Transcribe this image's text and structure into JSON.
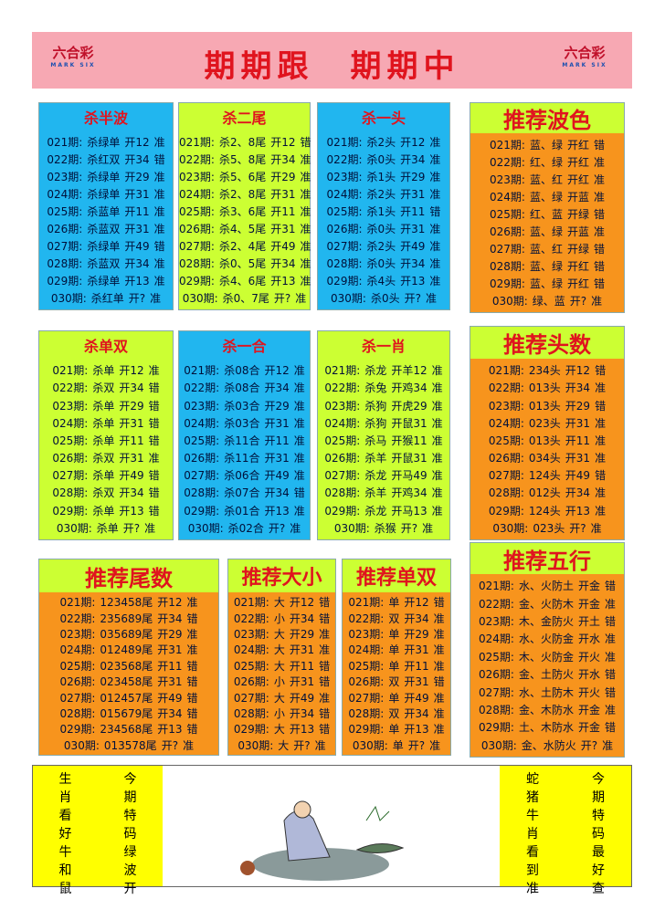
{
  "header": {
    "title": "期期跟　期期中",
    "logo_left": {
      "text": "六合彩",
      "sub": "MARK SIX"
    },
    "logo_right": {
      "text": "六合彩",
      "sub": "MARK SIX"
    }
  },
  "panels": [
    {
      "title": "杀半波",
      "rows": [
        [
          "021期:",
          "杀绿单",
          "开12",
          "准"
        ],
        [
          "022期:",
          "杀红双",
          "开34",
          "错"
        ],
        [
          "023期:",
          "杀绿单",
          "开29",
          "准"
        ],
        [
          "024期:",
          "杀绿单",
          "开31",
          "准"
        ],
        [
          "025期:",
          "杀蓝单",
          "开11",
          "准"
        ],
        [
          "026期:",
          "杀蓝双",
          "开31",
          "准"
        ],
        [
          "027期:",
          "杀绿单",
          "开49",
          "错"
        ],
        [
          "028期:",
          "杀蓝双",
          "开34",
          "准"
        ],
        [
          "029期:",
          "杀绿单",
          "开13",
          "准"
        ],
        [
          "030期:",
          "杀红单",
          "开?",
          "准"
        ]
      ]
    },
    {
      "title": "杀二尾",
      "rows": [
        [
          "021期:",
          "杀2、8尾",
          "开12",
          "错"
        ],
        [
          "022期:",
          "杀5、8尾",
          "开34",
          "准"
        ],
        [
          "023期:",
          "杀5、6尾",
          "开29",
          "准"
        ],
        [
          "024期:",
          "杀2、8尾",
          "开31",
          "准"
        ],
        [
          "025期:",
          "杀3、6尾",
          "开11",
          "准"
        ],
        [
          "026期:",
          "杀4、5尾",
          "开31",
          "准"
        ],
        [
          "027期:",
          "杀2、4尾",
          "开49",
          "准"
        ],
        [
          "028期:",
          "杀0、5尾",
          "开34",
          "准"
        ],
        [
          "029期:",
          "杀4、6尾",
          "开13",
          "准"
        ],
        [
          "030期:",
          "杀0、7尾",
          "开?",
          "准"
        ]
      ]
    },
    {
      "title": "杀一头",
      "rows": [
        [
          "021期:",
          "杀2头",
          "开12",
          "准"
        ],
        [
          "022期:",
          "杀0头",
          "开34",
          "准"
        ],
        [
          "023期:",
          "杀1头",
          "开29",
          "准"
        ],
        [
          "024期:",
          "杀2头",
          "开31",
          "准"
        ],
        [
          "025期:",
          "杀1头",
          "开11",
          "错"
        ],
        [
          "026期:",
          "杀0头",
          "开31",
          "准"
        ],
        [
          "027期:",
          "杀2头",
          "开49",
          "准"
        ],
        [
          "028期:",
          "杀0头",
          "开34",
          "准"
        ],
        [
          "029期:",
          "杀4头",
          "开13",
          "准"
        ],
        [
          "030期:",
          "杀0头",
          "开?",
          "准"
        ]
      ]
    },
    {
      "title": "推荐波色",
      "rows": [
        [
          "021期:",
          "蓝、绿",
          "开红",
          "错"
        ],
        [
          "022期:",
          "红、绿",
          "开红",
          "准"
        ],
        [
          "023期:",
          "蓝、红",
          "开红",
          "准"
        ],
        [
          "024期:",
          "蓝、绿",
          "开蓝",
          "准"
        ],
        [
          "025期:",
          "红、蓝",
          "开绿",
          "错"
        ],
        [
          "026期:",
          "蓝、绿",
          "开蓝",
          "准"
        ],
        [
          "027期:",
          "蓝、红",
          "开绿",
          "错"
        ],
        [
          "028期:",
          "蓝、绿",
          "开红",
          "错"
        ],
        [
          "029期:",
          "蓝、绿",
          "开红",
          "错"
        ],
        [
          "030期:",
          "绿、蓝",
          "开?",
          "准"
        ]
      ]
    },
    {
      "title": "杀单双",
      "rows": [
        [
          "021期:",
          "杀单",
          "开12",
          "准"
        ],
        [
          "022期:",
          "杀双",
          "开34",
          "错"
        ],
        [
          "023期:",
          "杀单",
          "开29",
          "错"
        ],
        [
          "024期:",
          "杀单",
          "开31",
          "错"
        ],
        [
          "025期:",
          "杀单",
          "开11",
          "错"
        ],
        [
          "026期:",
          "杀双",
          "开31",
          "准"
        ],
        [
          "027期:",
          "杀单",
          "开49",
          "错"
        ],
        [
          "028期:",
          "杀双",
          "开34",
          "错"
        ],
        [
          "029期:",
          "杀单",
          "开13",
          "错"
        ],
        [
          "030期:",
          "杀单",
          "开?",
          "准"
        ]
      ]
    },
    {
      "title": "杀一合",
      "rows": [
        [
          "021期:",
          "杀08合",
          "开12",
          "准"
        ],
        [
          "022期:",
          "杀08合",
          "开34",
          "准"
        ],
        [
          "023期:",
          "杀03合",
          "开29",
          "准"
        ],
        [
          "024期:",
          "杀03合",
          "开31",
          "准"
        ],
        [
          "025期:",
          "杀11合",
          "开11",
          "准"
        ],
        [
          "026期:",
          "杀11合",
          "开31",
          "准"
        ],
        [
          "027期:",
          "杀06合",
          "开49",
          "准"
        ],
        [
          "028期:",
          "杀07合",
          "开34",
          "错"
        ],
        [
          "029期:",
          "杀01合",
          "开13",
          "准"
        ],
        [
          "030期:",
          "杀02合",
          "开?",
          "准"
        ]
      ]
    },
    {
      "title": "杀一肖",
      "rows": [
        [
          "021期:",
          "杀龙",
          "开羊12",
          "准"
        ],
        [
          "022期:",
          "杀兔",
          "开鸡34",
          "准"
        ],
        [
          "023期:",
          "杀狗",
          "开虎29",
          "准"
        ],
        [
          "024期:",
          "杀狗",
          "开鼠31",
          "准"
        ],
        [
          "025期:",
          "杀马",
          "开猴11",
          "准"
        ],
        [
          "026期:",
          "杀羊",
          "开鼠31",
          "准"
        ],
        [
          "027期:",
          "杀龙",
          "开马49",
          "准"
        ],
        [
          "028期:",
          "杀羊",
          "开鸡34",
          "准"
        ],
        [
          "029期:",
          "杀龙",
          "开马13",
          "准"
        ],
        [
          "030期:",
          "杀猴",
          "开?",
          "准"
        ]
      ]
    },
    {
      "title": "推荐头数",
      "rows": [
        [
          "021期:",
          "234头",
          "开12",
          "错"
        ],
        [
          "022期:",
          "013头",
          "开34",
          "准"
        ],
        [
          "023期:",
          "013头",
          "开29",
          "错"
        ],
        [
          "024期:",
          "023头",
          "开31",
          "准"
        ],
        [
          "025期:",
          "013头",
          "开11",
          "准"
        ],
        [
          "026期:",
          "034头",
          "开31",
          "准"
        ],
        [
          "027期:",
          "124头",
          "开49",
          "错"
        ],
        [
          "028期:",
          "012头",
          "开34",
          "准"
        ],
        [
          "029期:",
          "124头",
          "开13",
          "准"
        ],
        [
          "030期:",
          "023头",
          "开?",
          "准"
        ]
      ]
    },
    {
      "title": "推荐尾数",
      "rows": [
        [
          "021期:",
          "123458尾",
          "开12",
          "准"
        ],
        [
          "022期:",
          "235689尾",
          "开34",
          "错"
        ],
        [
          "023期:",
          "035689尾",
          "开29",
          "准"
        ],
        [
          "024期:",
          "012489尾",
          "开31",
          "准"
        ],
        [
          "025期:",
          "023568尾",
          "开11",
          "错"
        ],
        [
          "026期:",
          "023458尾",
          "开31",
          "错"
        ],
        [
          "027期:",
          "012457尾",
          "开49",
          "错"
        ],
        [
          "028期:",
          "015679尾",
          "开34",
          "错"
        ],
        [
          "029期:",
          "234568尾",
          "开13",
          "错"
        ],
        [
          "030期:",
          "013578尾",
          "开?",
          "准"
        ]
      ]
    },
    {
      "title": "推荐大小",
      "rows": [
        [
          "021期:",
          "大",
          "开12",
          "错"
        ],
        [
          "022期:",
          "小",
          "开34",
          "错"
        ],
        [
          "023期:",
          "大",
          "开29",
          "准"
        ],
        [
          "024期:",
          "大",
          "开31",
          "准"
        ],
        [
          "025期:",
          "大",
          "开11",
          "错"
        ],
        [
          "026期:",
          "小",
          "开31",
          "错"
        ],
        [
          "027期:",
          "大",
          "开49",
          "准"
        ],
        [
          "028期:",
          "小",
          "开34",
          "错"
        ],
        [
          "029期:",
          "大",
          "开13",
          "错"
        ],
        [
          "030期:",
          "大",
          "开?",
          "准"
        ]
      ]
    },
    {
      "title": "推荐单双",
      "rows": [
        [
          "021期:",
          "单",
          "开12",
          "错"
        ],
        [
          "022期:",
          "双",
          "开34",
          "准"
        ],
        [
          "023期:",
          "单",
          "开29",
          "准"
        ],
        [
          "024期:",
          "单",
          "开31",
          "准"
        ],
        [
          "025期:",
          "单",
          "开11",
          "准"
        ],
        [
          "026期:",
          "双",
          "开31",
          "错"
        ],
        [
          "027期:",
          "单",
          "开49",
          "准"
        ],
        [
          "028期:",
          "双",
          "开34",
          "准"
        ],
        [
          "029期:",
          "单",
          "开13",
          "准"
        ],
        [
          "030期:",
          "单",
          "开?",
          "准"
        ]
      ]
    },
    {
      "title": "推荐五行",
      "rows": [
        [
          "021期:",
          "水、火防土",
          "开金",
          "错"
        ],
        [
          "022期:",
          "金、火防木",
          "开金",
          "准"
        ],
        [
          "023期:",
          "木、金防火",
          "开土",
          "错"
        ],
        [
          "024期:",
          "水、火防金",
          "开水",
          "准"
        ],
        [
          "025期:",
          "木、火防金",
          "开火",
          "准"
        ],
        [
          "026期:",
          "金、土防火",
          "开水",
          "错"
        ],
        [
          "027期:",
          "水、土防木",
          "开火",
          "错"
        ],
        [
          "028期:",
          "金、木防水",
          "开金",
          "准"
        ],
        [
          "029期:",
          "土、木防水",
          "开金",
          "错"
        ],
        [
          "030期:",
          "金、水防火",
          "开?",
          "准"
        ]
      ]
    }
  ],
  "bottom": {
    "left": [
      [
        "生",
        "肖",
        "看",
        "好",
        "牛",
        "和",
        "鼠"
      ],
      [
        "今",
        "期",
        "特",
        "码",
        "绿",
        "波",
        "开"
      ]
    ],
    "right": [
      [
        "蛇",
        "猪",
        "牛",
        "肖",
        "看",
        "到",
        "准"
      ],
      [
        "今",
        "期",
        "特",
        "码",
        "最",
        "好",
        "查"
      ]
    ]
  }
}
